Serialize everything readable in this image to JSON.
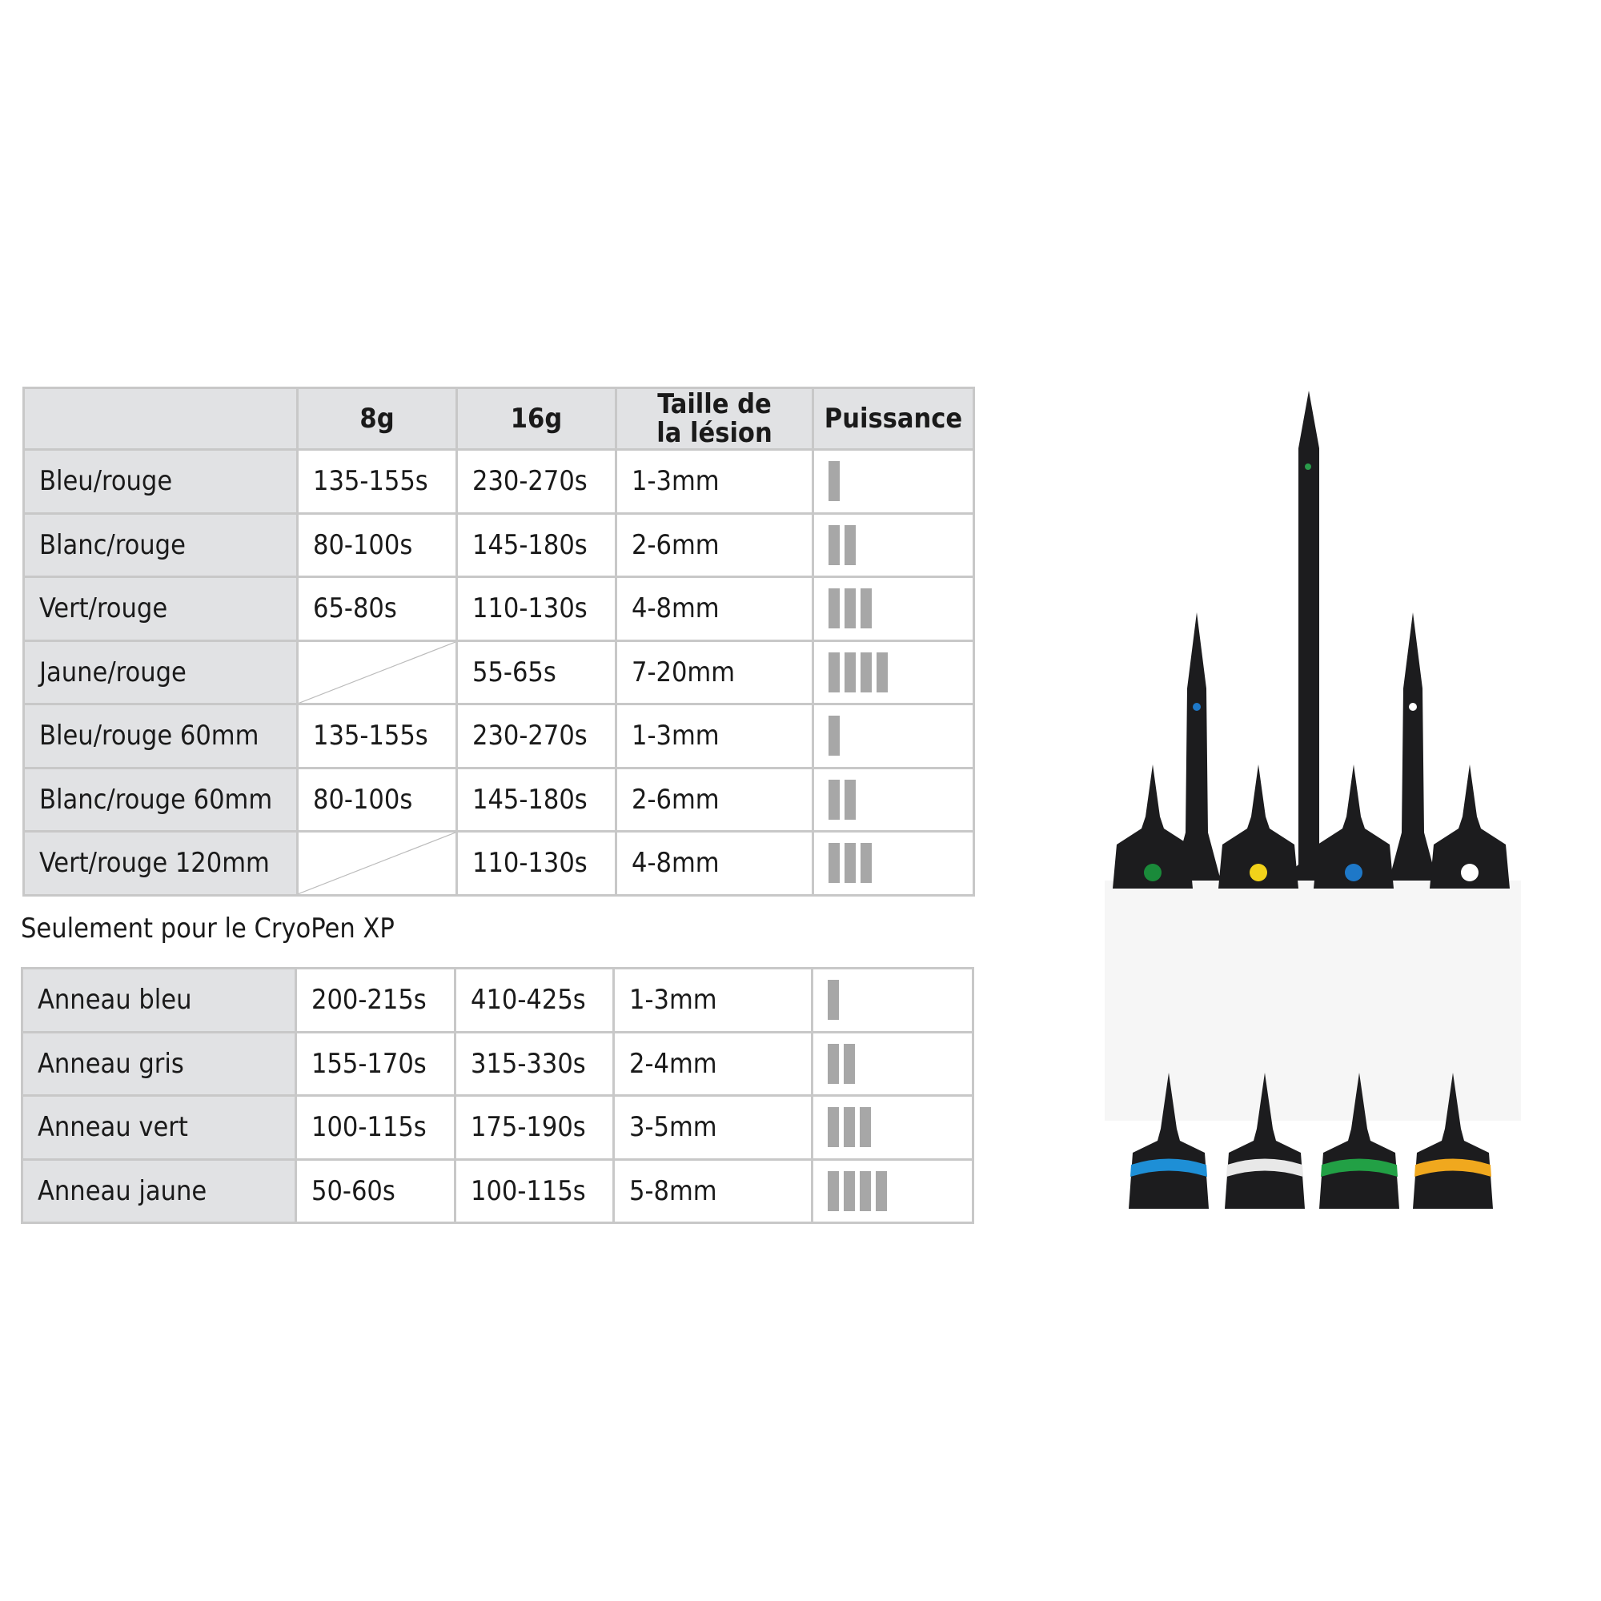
{
  "table1": {
    "headers": [
      "",
      "8g",
      "16g",
      "Taille de la lésion",
      "Puissance"
    ],
    "header_lines": {
      "size_line1": "Taille de",
      "size_line2": "la lésion"
    },
    "rows": [
      {
        "name": "Bleu/rouge",
        "g8": "135-155s",
        "g16": "230-270s",
        "size": "1-3mm",
        "power": 1
      },
      {
        "name": "Blanc/rouge",
        "g8": "80-100s",
        "g16": "145-180s",
        "size": "2-6mm",
        "power": 2
      },
      {
        "name": "Vert/rouge",
        "g8": "65-80s",
        "g16": "110-130s",
        "size": "4-8mm",
        "power": 3
      },
      {
        "name": "Jaune/rouge",
        "g8": null,
        "g16": "55-65s",
        "size": "7-20mm",
        "power": 4
      },
      {
        "name": "Bleu/rouge 60mm",
        "g8": "135-155s",
        "g16": "230-270s",
        "size": "1-3mm",
        "power": 1
      },
      {
        "name": "Blanc/rouge 60mm",
        "g8": "80-100s",
        "g16": "145-180s",
        "size": "2-6mm",
        "power": 2
      },
      {
        "name": "Vert/rouge 120mm",
        "g8": null,
        "g16": "110-130s",
        "size": "4-8mm",
        "power": 3
      }
    ]
  },
  "caption": "Seulement pour le CryoPen XP",
  "table2": {
    "rows": [
      {
        "name": "Anneau bleu",
        "g8": "200-215s",
        "g16": "410-425s",
        "size": "1-3mm",
        "power": 1
      },
      {
        "name": "Anneau gris",
        "g8": "155-170s",
        "g16": "315-330s",
        "size": "2-4mm",
        "power": 2
      },
      {
        "name": "Anneau vert",
        "g8": "100-115s",
        "g16": "175-190s",
        "size": "3-5mm",
        "power": 3
      },
      {
        "name": "Anneau jaune",
        "g8": "50-60s",
        "g16": "100-115s",
        "size": "5-8mm",
        "power": 4
      }
    ]
  },
  "colors": {
    "header_bg": "#e1e2e4",
    "border": "#c8c8c8",
    "power_bar": "#a7a7a7",
    "pen": "#1c1c1e",
    "tip_dots": [
      "#1a8a3a",
      "#f2d21a",
      "#1e78c8",
      "#ffffff"
    ],
    "rings": [
      "#1e8fd6",
      "#e8e8e8",
      "#22a045",
      "#f0a81e"
    ]
  }
}
